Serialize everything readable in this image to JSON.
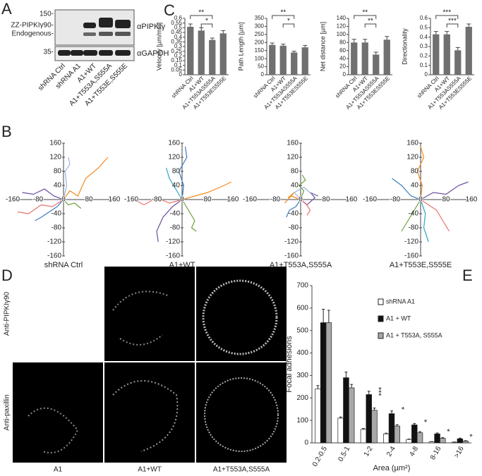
{
  "panel_labels": [
    "A",
    "B",
    "C",
    "D",
    "E"
  ],
  "blot": {
    "markers": [
      "150-",
      "ZZ-PIPKIγ90-",
      "Endogenous-",
      "35-"
    ],
    "antibodies": [
      "αPIPKIγ",
      "αGAPDH"
    ],
    "lanes": [
      "shRNA Ctrl",
      "shRNA A1",
      "A1+WT",
      "A1+T553A,S555A",
      "A1+T553E,S555E"
    ]
  },
  "micrographs": {
    "row_labels": [
      "Anti-PIPKIγ90",
      "Anti-paxillin"
    ],
    "column_labels": [
      "A1",
      "A1+WT",
      "A1+T553A,S555A"
    ]
  },
  "chart_data": [
    {
      "type": "bar",
      "ylabel": "Velocity [µm/min]",
      "categories": [
        "shRNA Ctrl",
        "A1+WT",
        "A1+T553AS555A",
        "A1+T553ES555E"
      ],
      "values": [
        0.51,
        0.47,
        0.37,
        0.44
      ],
      "errors": [
        0.03,
        0.03,
        0.02,
        0.03
      ],
      "color": "#707070",
      "ylim": [
        0,
        0.6
      ],
      "yticks": [
        0,
        0.05,
        0.1,
        0.15,
        0.2,
        0.25,
        0.3,
        0.35,
        0.4,
        0.45,
        0.5,
        0.55,
        0.6
      ],
      "significance": [
        "**",
        "*"
      ]
    },
    {
      "type": "bar",
      "ylabel": "Path Length [µm]",
      "categories": [
        "shRNA Ctrl",
        "A1+WT",
        "A1+T553AS555A",
        "A1+T553ES555E"
      ],
      "values": [
        185,
        180,
        138,
        170
      ],
      "errors": [
        12,
        10,
        8,
        12
      ],
      "color": "#707070",
      "ylim": [
        0,
        350
      ],
      "yticks": [
        0,
        50,
        100,
        150,
        200,
        250,
        300,
        350
      ],
      "significance": [
        "**",
        "*"
      ]
    },
    {
      "type": "bar",
      "ylabel": "Net distance [µm]",
      "categories": [
        "shRNA Ctrl",
        "A1+WT",
        "A1+T553AS555A",
        "A1+T553ES555E"
      ],
      "values": [
        80,
        80,
        50,
        87
      ],
      "errors": [
        8,
        8,
        6,
        8
      ],
      "color": "#707070",
      "ylim": [
        0,
        140
      ],
      "yticks": [
        0,
        20,
        40,
        60,
        80,
        100,
        120,
        140
      ],
      "significance": [
        "**",
        "**"
      ]
    },
    {
      "type": "bar",
      "ylabel": "Directionality",
      "categories": [
        "shRNA Ctrl",
        "A1+WT",
        "A1+T553AS555A",
        "A1+T553ES555E"
      ],
      "values": [
        0.43,
        0.43,
        0.26,
        0.51
      ],
      "errors": [
        0.03,
        0.03,
        0.03,
        0.03
      ],
      "color": "#707070",
      "ylim": [
        0,
        0.6
      ],
      "yticks": [
        0,
        0.1,
        0.2,
        0.3,
        0.4,
        0.5,
        0.6
      ],
      "significance": [
        "***",
        "***"
      ]
    },
    {
      "type": "track",
      "title": "shRNA Ctrl",
      "xlim": [
        -160,
        160
      ],
      "ylim": [
        -160,
        160
      ],
      "xticks": [
        -160,
        -80,
        0,
        80,
        160
      ],
      "yticks": [
        -160,
        -120,
        -80,
        -40,
        40,
        80,
        120,
        160
      ],
      "series": [
        {
          "color": "#f28a1c",
          "x": [
            0,
            20,
            45,
            70,
            110,
            140
          ],
          "y": [
            0,
            25,
            10,
            60,
            90,
            120
          ]
        },
        {
          "color": "#6a4fa0",
          "x": [
            0,
            -30,
            -60,
            -95,
            -130
          ],
          "y": [
            0,
            10,
            30,
            15,
            20
          ]
        },
        {
          "color": "#3a7dc2",
          "x": [
            0,
            -20,
            -45,
            -70,
            -90
          ],
          "y": [
            0,
            -20,
            -35,
            -50,
            -60
          ]
        },
        {
          "color": "#e8706a",
          "x": [
            0,
            -35,
            -70,
            -110,
            -145
          ],
          "y": [
            0,
            -20,
            -15,
            -40,
            -35
          ]
        },
        {
          "color": "#9ab4e0",
          "x": [
            0,
            10,
            5,
            20,
            15
          ],
          "y": [
            0,
            40,
            80,
            100,
            120
          ]
        },
        {
          "color": "#6e9e3c",
          "x": [
            0,
            15,
            35,
            55
          ],
          "y": [
            0,
            -15,
            -10,
            -25
          ]
        }
      ]
    },
    {
      "type": "track",
      "title": "A1+WT",
      "xlim": [
        -160,
        160
      ],
      "ylim": [
        -160,
        160
      ],
      "xticks": [
        -160,
        -80,
        0,
        80,
        160
      ],
      "yticks": [
        -160,
        -120,
        -80,
        -40,
        40,
        80,
        120,
        160
      ],
      "series": [
        {
          "color": "#f28a1c",
          "x": [
            0,
            40,
            80,
            120,
            155
          ],
          "y": [
            0,
            10,
            20,
            35,
            50
          ]
        },
        {
          "color": "#3a7dc2",
          "x": [
            0,
            5,
            -10,
            15,
            10
          ],
          "y": [
            0,
            40,
            80,
            120,
            150
          ]
        },
        {
          "color": "#6a4fa0",
          "x": [
            0,
            -30,
            -60,
            -80,
            -75
          ],
          "y": [
            0,
            -20,
            -50,
            -90,
            -120
          ]
        },
        {
          "color": "#e8706a",
          "x": [
            0,
            -40,
            -80,
            -120,
            -140
          ],
          "y": [
            0,
            -10,
            5,
            -15,
            -5
          ]
        },
        {
          "color": "#6e9e3c",
          "x": [
            0,
            20,
            40,
            30,
            45
          ],
          "y": [
            0,
            -30,
            -60,
            -80,
            -90
          ]
        },
        {
          "color": "#2aa8c0",
          "x": [
            0,
            -20,
            -40,
            -50
          ],
          "y": [
            0,
            30,
            60,
            90
          ]
        }
      ]
    },
    {
      "type": "track",
      "title": "A1+T553A,S555A",
      "xlim": [
        -160,
        160
      ],
      "ylim": [
        -160,
        160
      ],
      "xticks": [
        -160,
        -80,
        0,
        80,
        160
      ],
      "yticks": [
        -160,
        -120,
        -80,
        -40,
        40,
        80,
        120,
        160
      ],
      "series": [
        {
          "color": "#f28a1c",
          "x": [
            0,
            -30,
            -50,
            -20,
            -40
          ],
          "y": [
            0,
            10,
            -10,
            20,
            5
          ]
        },
        {
          "color": "#6a4fa0",
          "x": [
            0,
            20,
            45,
            30,
            55
          ],
          "y": [
            0,
            -15,
            5,
            20,
            10
          ]
        },
        {
          "color": "#3a7dc2",
          "x": [
            0,
            -15,
            -35,
            -45
          ],
          "y": [
            0,
            -20,
            -30,
            -50
          ]
        },
        {
          "color": "#6e9e3c",
          "x": [
            0,
            10,
            -5,
            15,
            5
          ],
          "y": [
            0,
            25,
            40,
            55,
            70
          ]
        },
        {
          "color": "#e8706a",
          "x": [
            0,
            15,
            30,
            20
          ],
          "y": [
            0,
            -10,
            -30,
            -45
          ]
        },
        {
          "color": "#9ab4e0",
          "x": [
            0,
            -20,
            10,
            35
          ],
          "y": [
            0,
            20,
            35,
            15
          ]
        }
      ]
    },
    {
      "type": "track",
      "title": "A1+T553E,S555E",
      "xlim": [
        -160,
        160
      ],
      "ylim": [
        -160,
        160
      ],
      "xticks": [
        -160,
        -80,
        0,
        80,
        160
      ],
      "yticks": [
        -160,
        -120,
        -80,
        -40,
        40,
        80,
        120,
        160
      ],
      "series": [
        {
          "color": "#6a4fa0",
          "x": [
            0,
            40,
            80,
            120,
            150
          ],
          "y": [
            0,
            20,
            15,
            40,
            50
          ]
        },
        {
          "color": "#f28a1c",
          "x": [
            0,
            5,
            -10,
            10,
            0
          ],
          "y": [
            0,
            40,
            80,
            120,
            150
          ]
        },
        {
          "color": "#6e9e3c",
          "x": [
            0,
            -20,
            -40,
            -60
          ],
          "y": [
            0,
            -30,
            -60,
            -90
          ]
        },
        {
          "color": "#e8706a",
          "x": [
            0,
            25,
            50,
            70,
            90
          ],
          "y": [
            0,
            -15,
            -30,
            -60,
            -90
          ]
        },
        {
          "color": "#3a7dc2",
          "x": [
            0,
            -30,
            -60,
            -90
          ],
          "y": [
            0,
            10,
            40,
            60
          ]
        },
        {
          "color": "#2aa8c0",
          "x": [
            0,
            15,
            10,
            25
          ],
          "y": [
            0,
            -40,
            -80,
            -120
          ]
        }
      ]
    },
    {
      "type": "grouped_bar",
      "ylabel": "Focal adhesions",
      "xlabel": "Area (µm²)",
      "categories": [
        "0.2-0.5",
        "0.5-1",
        "1-2",
        "2-4",
        "4-8",
        "8-16",
        ">16"
      ],
      "series": [
        {
          "name": "shRNA A1",
          "color": "#ffffff",
          "values": [
            240,
            110,
            60,
            40,
            15,
            5,
            3
          ],
          "errors": [
            15,
            5,
            4,
            3,
            2,
            1,
            1
          ]
        },
        {
          "name": "A1 + WT",
          "color": "#111111",
          "values": [
            535,
            290,
            215,
            130,
            80,
            40,
            18
          ],
          "errors": [
            60,
            25,
            15,
            12,
            6,
            4,
            3
          ]
        },
        {
          "name": "A1 + T553A, S555A",
          "color": "#a8a8a8",
          "values": [
            535,
            245,
            145,
            75,
            45,
            20,
            8
          ],
          "errors": [
            55,
            15,
            10,
            6,
            5,
            3,
            2
          ]
        }
      ],
      "ylim": [
        0,
        700
      ],
      "yticks": [
        0,
        100,
        200,
        300,
        400,
        500,
        600,
        700
      ],
      "significance": [
        null,
        null,
        "***",
        "*",
        "*",
        "*",
        "*"
      ]
    }
  ]
}
